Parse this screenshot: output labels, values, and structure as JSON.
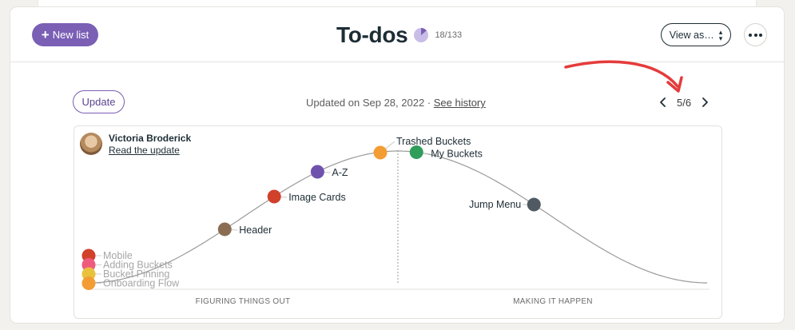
{
  "header": {
    "new_list_label": "New list",
    "title": "To-dos",
    "progress_count": "18/133",
    "progress_fraction": 0.135,
    "view_as_label": "View as…"
  },
  "update_bar": {
    "update_label": "Update",
    "updated_text": "Updated on Sep 28, 2022 · ",
    "see_history_label": "See history",
    "pager_text": "5/6"
  },
  "hill": {
    "author_name": "Victoria Broderick",
    "read_update_label": "Read the update",
    "left_label": "FIGURING THINGS OUT",
    "right_label": "MAKING IT HAPPEN",
    "items": [
      {
        "label": "Mobile",
        "position": 0,
        "color": "#d0402b",
        "faded": true
      },
      {
        "label": "Adding Buckets",
        "position": 0,
        "color": "#ef5b7d",
        "faded": true
      },
      {
        "label": "Bucket Pinning",
        "position": 0,
        "color": "#e8c23d",
        "faded": true
      },
      {
        "label": "Onboarding Flow",
        "position": 0,
        "color": "#f49c34",
        "faded": true
      },
      {
        "label": "Header",
        "position": 22,
        "color": "#8a6d52",
        "faded": false
      },
      {
        "label": "Image Cards",
        "position": 30,
        "color": "#d0402b",
        "faded": false
      },
      {
        "label": "A-Z",
        "position": 37,
        "color": "#6f52ad",
        "faded": false
      },
      {
        "label": "Trashed Buckets",
        "position": 50,
        "color": "#f49c34",
        "faded": false
      },
      {
        "label": "My Buckets",
        "position": 53,
        "color": "#2f9e5b",
        "faded": false
      },
      {
        "label": "Jump Menu",
        "position": 72,
        "color": "#4f5a63",
        "faded": false
      }
    ]
  },
  "colors": {
    "accent": "#7a5fb5",
    "annotation_arrow": "#e53b3b"
  }
}
